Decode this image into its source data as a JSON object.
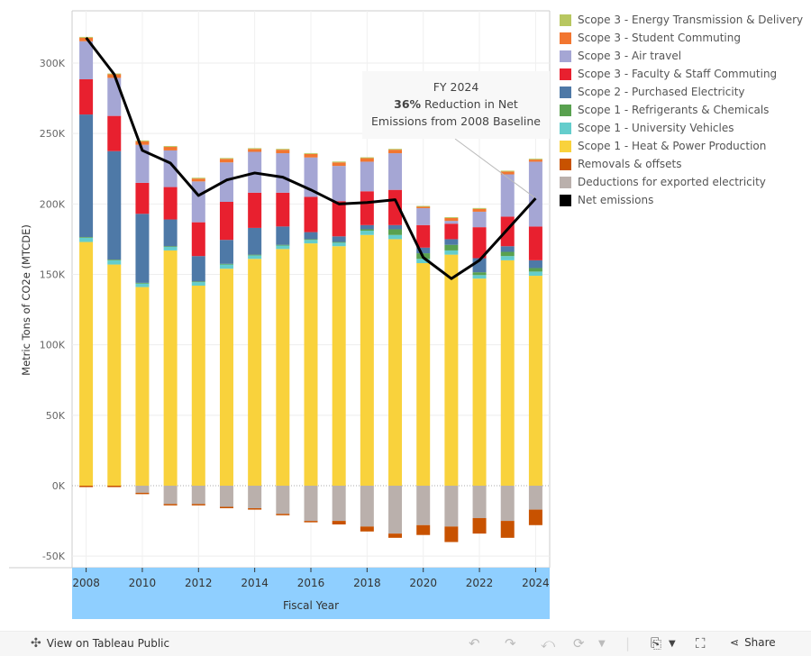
{
  "chart_data": {
    "type": "bar",
    "stacked": true,
    "title": "",
    "xlabel": "Fiscal Year",
    "ylabel": "Metric Tons of CO2e (MTCDE)",
    "ylim": [
      -58000,
      335000
    ],
    "yticks": [
      -50000,
      0,
      50000,
      100000,
      150000,
      200000,
      250000,
      300000
    ],
    "ytick_labels": [
      "-50K",
      "0K",
      "50K",
      "100K",
      "150K",
      "200K",
      "250K",
      "300K"
    ],
    "xtick_labels": [
      "2008",
      "2010",
      "2012",
      "2014",
      "2016",
      "2018",
      "2020",
      "2022",
      "2024"
    ],
    "categories": [
      "2008",
      "2009",
      "2010",
      "2011",
      "2012",
      "2013",
      "2014",
      "2015",
      "2016",
      "2017",
      "2018",
      "2019",
      "2020",
      "2021",
      "2022",
      "2023",
      "2024"
    ],
    "grid": true,
    "legend_position": "right",
    "series": [
      {
        "name": "Scope 1 - Heat & Power Production",
        "color": "#f9d23c",
        "values": [
          173000,
          157000,
          141000,
          167000,
          142000,
          154000,
          161000,
          168000,
          172000,
          170000,
          178000,
          175000,
          158000,
          164000,
          147000,
          160000,
          149000
        ]
      },
      {
        "name": "Scope 1 - University Vehicles",
        "color": "#64cdcc",
        "values": [
          3000,
          3000,
          2500,
          2500,
          2500,
          3000,
          2500,
          2500,
          2500,
          2500,
          3000,
          3000,
          3000,
          3000,
          2500,
          3000,
          3000
        ]
      },
      {
        "name": "Scope 1 - Refrigerants & Chemicals",
        "color": "#59a14f",
        "values": [
          500,
          500,
          500,
          500,
          500,
          500,
          500,
          500,
          500,
          500,
          1000,
          4000,
          4000,
          4000,
          2000,
          3000,
          2500
        ]
      },
      {
        "name": "Scope 2 - Purchased Electricity",
        "color": "#4e79a7",
        "values": [
          87000,
          77000,
          49000,
          19000,
          18000,
          17000,
          19000,
          13000,
          5000,
          4000,
          3000,
          3000,
          4000,
          4000,
          10000,
          4000,
          5500
        ]
      },
      {
        "name": "Scope 3 - Faculty & Staff Commuting",
        "color": "#e8202f",
        "values": [
          25000,
          25000,
          22000,
          23000,
          24000,
          27000,
          25000,
          24000,
          25000,
          25000,
          24000,
          25000,
          16000,
          11000,
          22000,
          21000,
          24000
        ]
      },
      {
        "name": "Scope 3 - Air travel",
        "color": "#a5a6d4",
        "values": [
          27000,
          27000,
          27000,
          26000,
          29000,
          28000,
          29000,
          28000,
          28000,
          25000,
          21000,
          26000,
          12000,
          2000,
          11000,
          30000,
          46000
        ]
      },
      {
        "name": "Scope 3 - Student Commuting",
        "color": "#f27630",
        "values": [
          2500,
          2500,
          2500,
          2500,
          2000,
          2500,
          2000,
          2500,
          2500,
          2500,
          2500,
          2500,
          1000,
          2000,
          2000,
          2000,
          1500
        ]
      },
      {
        "name": "Scope 3 - Energy Transmission & Delivery",
        "color": "#b8c760",
        "values": [
          600,
          600,
          600,
          600,
          600,
          600,
          600,
          600,
          600,
          600,
          600,
          600,
          600,
          600,
          600,
          600,
          600
        ]
      },
      {
        "name": "Deductions for exported electricity",
        "color": "#bab0ac",
        "values": [
          0,
          0,
          -5000,
          -13000,
          -13000,
          -15000,
          -16000,
          -20000,
          -25000,
          -25000,
          -29000,
          -34000,
          -28000,
          -29000,
          -23000,
          -25000,
          -17000
        ]
      },
      {
        "name": "Removals & offsets",
        "color": "#c85200",
        "values": [
          -1000,
          -1000,
          -1000,
          -1000,
          -1000,
          -1000,
          -1000,
          -1000,
          -1000,
          -2500,
          -3500,
          -3000,
          -7000,
          -11000,
          -11000,
          -12000,
          -11000
        ]
      }
    ],
    "line_series": {
      "name": "Net emissions",
      "color": "#000000",
      "values": [
        318000,
        292000,
        238000,
        229000,
        206000,
        217000,
        222000,
        219000,
        210000,
        200000,
        201000,
        203000,
        162000,
        147000,
        160000,
        182000,
        204000
      ]
    },
    "annotation": {
      "title": "FY 2024",
      "bold": "36%",
      "line1": " Reduction in Net",
      "line2": "Emissions from 2008 Baseline",
      "target": "2024"
    }
  },
  "legend": [
    {
      "label": "Scope 3 - Energy Transmission & Delivery",
      "color": "#b8c760"
    },
    {
      "label": "Scope 3 - Student Commuting",
      "color": "#f27630"
    },
    {
      "label": "Scope 3 - Air travel",
      "color": "#a5a6d4"
    },
    {
      "label": "Scope 3 - Faculty & Staff Commuting",
      "color": "#e8202f"
    },
    {
      "label": "Scope 2 - Purchased Electricity",
      "color": "#4e79a7"
    },
    {
      "label": "Scope 1 - Refrigerants & Chemicals",
      "color": "#59a14f"
    },
    {
      "label": "Scope 1 - University Vehicles",
      "color": "#64cdcc"
    },
    {
      "label": "Scope 1 - Heat & Power Production",
      "color": "#f9d23c"
    },
    {
      "label": "Removals & offsets",
      "color": "#c85200"
    },
    {
      "label": "Deductions for exported electricity",
      "color": "#bab0ac"
    },
    {
      "label": "Net emissions",
      "color": "#000000"
    }
  ],
  "footer": {
    "view_label": "View on Tableau Public",
    "share_label": "Share"
  },
  "colors": {
    "axis_band": "#8fcfff"
  }
}
